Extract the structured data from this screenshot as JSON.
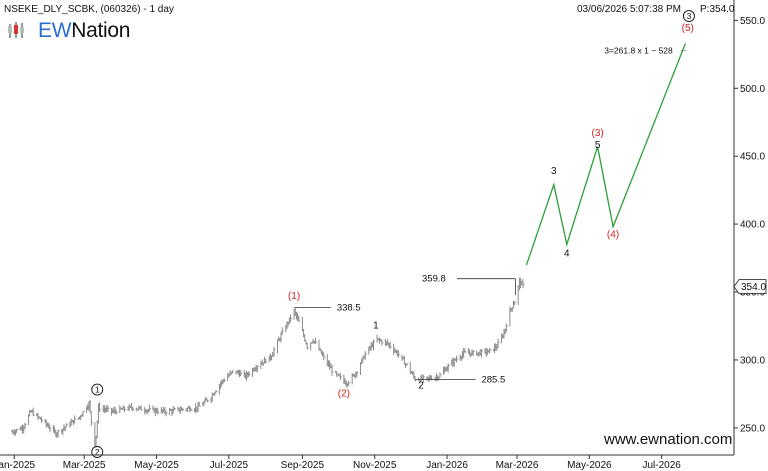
{
  "header": {
    "symbol_line": "NSEKE_DLY_SCBK, (060326) - 1 day",
    "timestamp": "03/06/2026 5:07:38 PM",
    "price_readout": "P:354.0"
  },
  "logo": {
    "prefix": "EW",
    "suffix": "Nation"
  },
  "website": "www.ewnation.com",
  "colors": {
    "price_bars": "#8a8a8a",
    "projection": "#2e9e3a",
    "red_label": "#d62020",
    "guide_line": "#333333"
  },
  "chart_data": {
    "type": "bar",
    "x_axis": {
      "type": "date",
      "range": [
        "2024-12-20",
        "2026-08-31"
      ],
      "ticks": [
        "Jan-2025",
        "Mar-2025",
        "May-2025",
        "Jul-2025",
        "Sep-2025",
        "Nov-2025",
        "Jan-2026",
        "Mar-2026",
        "May-2026",
        "Jul-2026"
      ]
    },
    "y_axis": {
      "range": [
        230,
        565
      ],
      "ticks": [
        "250.0",
        "300.0",
        "350.0",
        "400.0",
        "450.0",
        "500.0",
        "550.0"
      ],
      "position": "right"
    },
    "grid": false,
    "last_price": "354.0",
    "price_series": [
      [
        "2024-12-30",
        247
      ],
      [
        "2025-01-08",
        250
      ],
      [
        "2025-01-15",
        262
      ],
      [
        "2025-01-25",
        255
      ],
      [
        "2025-02-05",
        246
      ],
      [
        "2025-02-15",
        252
      ],
      [
        "2025-02-25",
        258
      ],
      [
        "2025-03-05",
        268
      ],
      [
        "2025-03-10",
        234
      ],
      [
        "2025-03-13",
        265
      ],
      [
        "2025-03-25",
        262
      ],
      [
        "2025-04-10",
        265
      ],
      [
        "2025-04-25",
        263
      ],
      [
        "2025-05-10",
        262
      ],
      [
        "2025-05-25",
        264
      ],
      [
        "2025-06-05",
        265
      ],
      [
        "2025-06-15",
        272
      ],
      [
        "2025-06-25",
        284
      ],
      [
        "2025-07-05",
        292
      ],
      [
        "2025-07-15",
        288
      ],
      [
        "2025-07-25",
        296
      ],
      [
        "2025-08-05",
        302
      ],
      [
        "2025-08-15",
        320
      ],
      [
        "2025-08-25",
        336
      ],
      [
        "2025-08-30",
        326
      ],
      [
        "2025-09-05",
        310
      ],
      [
        "2025-09-10",
        315
      ],
      [
        "2025-09-20",
        300
      ],
      [
        "2025-09-28",
        290
      ],
      [
        "2025-10-08",
        283
      ],
      [
        "2025-10-15",
        289
      ],
      [
        "2025-10-25",
        306
      ],
      [
        "2025-11-03",
        315
      ],
      [
        "2025-11-12",
        312
      ],
      [
        "2025-11-20",
        305
      ],
      [
        "2025-11-28",
        296
      ],
      [
        "2025-12-05",
        286
      ],
      [
        "2025-12-15",
        286
      ],
      [
        "2025-12-25",
        288
      ],
      [
        "2026-01-05",
        298
      ],
      [
        "2026-01-15",
        305
      ],
      [
        "2026-01-25",
        305
      ],
      [
        "2026-02-05",
        306
      ],
      [
        "2026-02-12",
        310
      ],
      [
        "2026-02-18",
        320
      ],
      [
        "2026-02-23",
        336
      ],
      [
        "2026-02-28",
        345
      ],
      [
        "2026-03-03",
        358
      ],
      [
        "2026-03-06",
        354
      ]
    ],
    "projection_path": [
      [
        "2026-03-09",
        370
      ],
      [
        "2026-04-01",
        429
      ],
      [
        "2026-04-12",
        385
      ],
      [
        "2026-05-08",
        457
      ],
      [
        "2026-05-21",
        398
      ],
      [
        "2026-07-21",
        533
      ]
    ],
    "annotations": [
      {
        "label": "(1)",
        "color": "red",
        "date": "2025-08-25",
        "price": 345
      },
      {
        "label": "(2)",
        "color": "red",
        "date": "2025-10-06",
        "price": 273
      },
      {
        "label": "(3)",
        "color": "red",
        "date": "2026-05-08",
        "price": 465
      },
      {
        "label": "(4)",
        "color": "red",
        "date": "2026-05-21",
        "price": 390
      },
      {
        "label": "(5)",
        "color": "red",
        "date": "2026-07-23",
        "price": 542
      },
      {
        "label": "1",
        "color": "black",
        "date": "2025-11-02",
        "price": 323
      },
      {
        "label": "2",
        "color": "black",
        "date": "2025-12-10",
        "price": 279
      },
      {
        "label": "3",
        "color": "black",
        "date": "2026-04-01",
        "price": 437
      },
      {
        "label": "4",
        "color": "black",
        "date": "2026-04-12",
        "price": 376
      },
      {
        "label": "5",
        "color": "black",
        "date": "2026-05-08",
        "price": 456
      },
      {
        "label": "1",
        "color": "black",
        "circled": true,
        "date": "2025-03-12",
        "price": 276
      },
      {
        "label": "2",
        "color": "black",
        "circled": true,
        "date": "2025-03-12",
        "price": 230
      },
      {
        "label": "3",
        "color": "black",
        "circled": true,
        "date": "2026-07-24",
        "price": 551
      }
    ],
    "levels": [
      {
        "label": "338.5",
        "price": 338.5,
        "from": "2025-08-25",
        "to": "2025-09-25"
      },
      {
        "label": "285.5",
        "price": 285.5,
        "from": "2025-12-05",
        "to": "2026-01-25"
      },
      {
        "label": "359.8",
        "price": 359.8,
        "from": "2025-12-05",
        "to": "2026-03-03"
      }
    ],
    "target_note": {
      "text": "3=261.8 x 1 ~ 528",
      "price": 528,
      "from": "2026-05-22",
      "to": "2026-07-21"
    }
  }
}
